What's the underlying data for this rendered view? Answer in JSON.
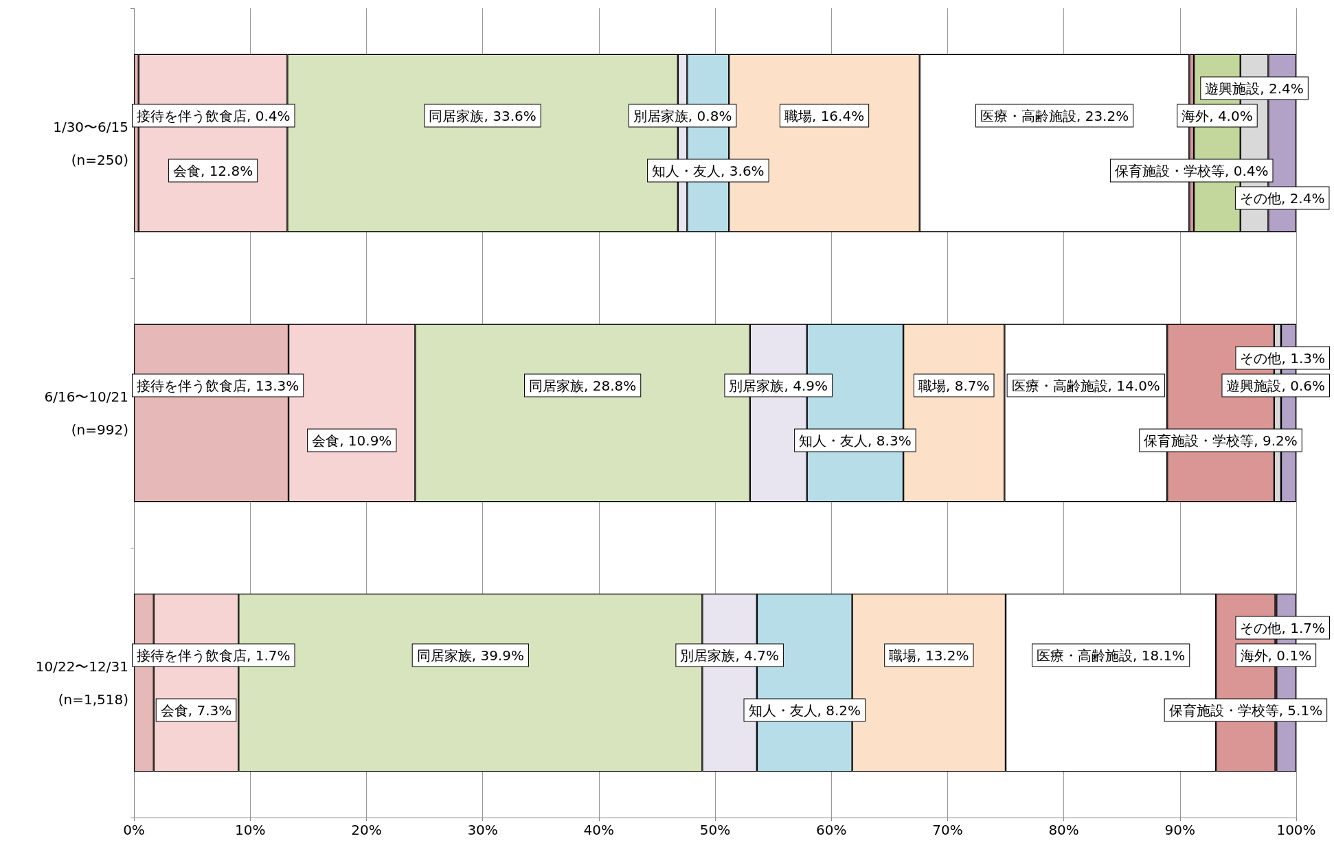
{
  "chart_data": {
    "type": "bar",
    "orientation": "horizontal",
    "stacked": true,
    "grid": "x",
    "categories": [
      "1/30〜6/15\n(n=250)",
      "6/16〜10/21\n(n=992)",
      "10/22〜12/31\n(n=1,518)"
    ],
    "xlim": [
      0,
      100
    ],
    "xticks": [
      {
        "value": 0,
        "label": "0%"
      },
      {
        "value": 10,
        "label": "10%"
      },
      {
        "value": 20,
        "label": "20%"
      },
      {
        "value": 30,
        "label": "30%"
      },
      {
        "value": 40,
        "label": "40%"
      },
      {
        "value": 50,
        "label": "50%"
      },
      {
        "value": 60,
        "label": "60%"
      },
      {
        "value": 70,
        "label": "70%"
      },
      {
        "value": 80,
        "label": "80%"
      },
      {
        "value": 90,
        "label": "90%"
      },
      {
        "value": 100,
        "label": "100%"
      }
    ],
    "series": [
      {
        "color": "#e6b9b8",
        "values": [
          0.4,
          13.3,
          1.7
        ],
        "value_labels": [
          "接待を伴う飲食店, 0.4%",
          "接待を伴う飲食店, 13.3%",
          "接待を伴う飲食店, 1.7%"
        ]
      },
      {
        "color": "#f6d4d4",
        "values": [
          12.8,
          10.9,
          7.3
        ],
        "value_labels": [
          "会食, 12.8%",
          "会食, 10.9%",
          "会食, 7.3%"
        ]
      },
      {
        "color": "#d7e4bd",
        "values": [
          33.6,
          28.8,
          39.9
        ],
        "value_labels": [
          "同居家族, 33.6%",
          "同居家族, 28.8%",
          "同居家族, 39.9%"
        ]
      },
      {
        "color": "#e8e4f0",
        "values": [
          0.8,
          4.9,
          4.7
        ],
        "value_labels": [
          "別居家族, 0.8%",
          "別居家族, 4.9%",
          "別居家族, 4.7%"
        ]
      },
      {
        "color": "#b7dee8",
        "values": [
          3.6,
          8.3,
          8.2
        ],
        "value_labels": [
          "知人・友人, 3.6%",
          "知人・友人, 8.3%",
          "知人・友人, 8.2%"
        ]
      },
      {
        "color": "#fde0c8",
        "values": [
          16.4,
          8.7,
          13.2
        ],
        "value_labels": [
          "職場, 16.4%",
          "職場, 8.7%",
          "職場, 13.2%"
        ]
      },
      {
        "color": "#ffffff",
        "values": [
          23.2,
          14.0,
          18.1
        ],
        "value_labels": [
          "医療・高齢施設, 23.2%",
          "医療・高齢施設, 14.0%",
          "医療・高齢施設, 18.1%"
        ]
      },
      {
        "color": "#d99694",
        "values": [
          0.4,
          9.2,
          5.1
        ],
        "value_labels": [
          "保育施設・学校等, 0.4%",
          "保育施設・学校等, 9.2%",
          "保育施設・学校等, 5.1%"
        ]
      },
      {
        "color": "#c3d69b",
        "values": [
          4.0,
          null,
          0.1
        ],
        "value_labels": [
          "海外, 4.0%",
          null,
          "海外, 0.1%"
        ]
      },
      {
        "color": "#d9d9d9",
        "values": [
          2.4,
          0.6,
          null
        ],
        "value_labels": [
          "遊興施設, 2.4%",
          "遊興施設, 0.6%",
          null
        ]
      },
      {
        "color": "#b3a2c7",
        "values": [
          2.4,
          1.3,
          1.7
        ],
        "value_labels": [
          "その他, 2.4%",
          "その他, 1.3%",
          "その他, 1.7%"
        ]
      }
    ]
  }
}
